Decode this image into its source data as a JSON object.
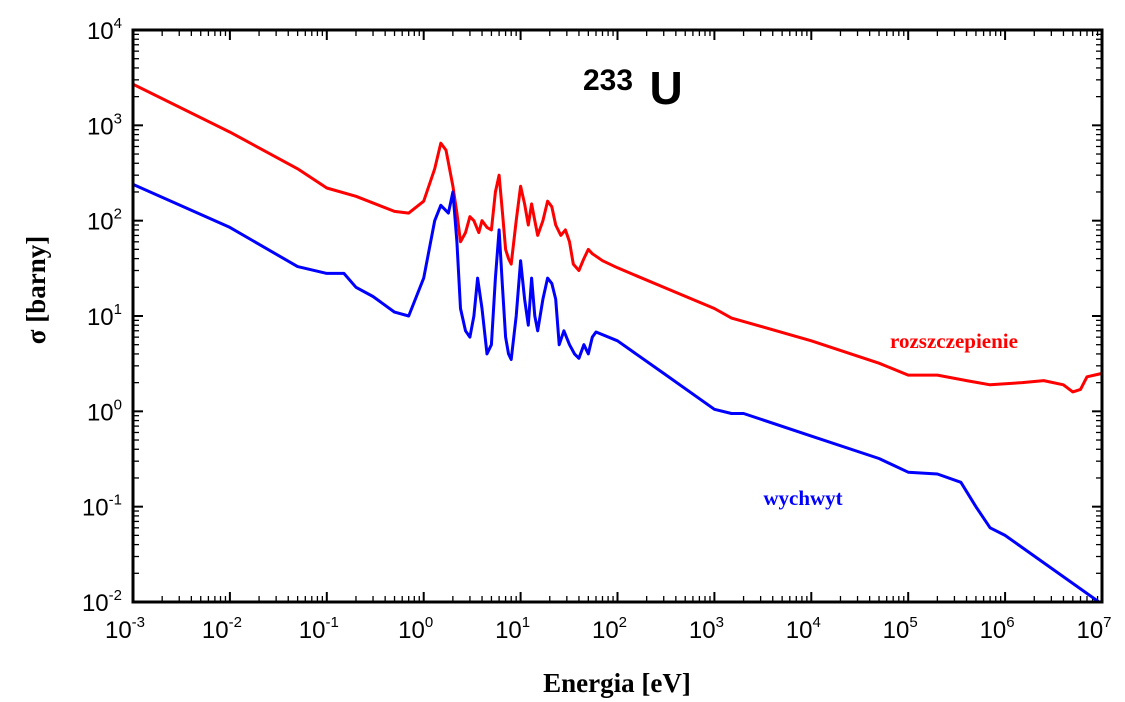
{
  "chart_data": {
    "type": "line",
    "title": "",
    "annotation": {
      "mass_number": "233",
      "element": "U"
    },
    "xlabel": "Energia [eV]",
    "ylabel": "σ [barny]",
    "x_scale": "log",
    "y_scale": "log",
    "xlim": [
      0.001,
      10000000
    ],
    "ylim": [
      0.01,
      10000
    ],
    "x_ticks": [
      {
        "base": "10",
        "exp": "-3",
        "value": 0.001
      },
      {
        "base": "10",
        "exp": "-2",
        "value": 0.01
      },
      {
        "base": "10",
        "exp": "-1",
        "value": 0.1
      },
      {
        "base": "10",
        "exp": "0",
        "value": 1
      },
      {
        "base": "10",
        "exp": "1",
        "value": 10
      },
      {
        "base": "10",
        "exp": "2",
        "value": 100
      },
      {
        "base": "10",
        "exp": "3",
        "value": 1000
      },
      {
        "base": "10",
        "exp": "4",
        "value": 10000
      },
      {
        "base": "10",
        "exp": "5",
        "value": 100000
      },
      {
        "base": "10",
        "exp": "6",
        "value": 1000000
      },
      {
        "base": "10",
        "exp": "7",
        "value": 10000000
      }
    ],
    "y_ticks": [
      {
        "base": "10",
        "exp": "-2",
        "value": 0.01
      },
      {
        "base": "10",
        "exp": "-1",
        "value": 0.1
      },
      {
        "base": "10",
        "exp": "0",
        "value": 1
      },
      {
        "base": "10",
        "exp": "1",
        "value": 10
      },
      {
        "base": "10",
        "exp": "2",
        "value": 100
      },
      {
        "base": "10",
        "exp": "3",
        "value": 1000
      },
      {
        "base": "10",
        "exp": "4",
        "value": 10000
      }
    ],
    "grid": false,
    "series": [
      {
        "name": "rozszczepienie",
        "color": "#ff0000",
        "points": [
          [
            0.001,
            2700
          ],
          [
            0.01,
            850
          ],
          [
            0.05,
            350
          ],
          [
            0.1,
            220
          ],
          [
            0.2,
            180
          ],
          [
            0.5,
            125
          ],
          [
            0.7,
            120
          ],
          [
            1.0,
            160
          ],
          [
            1.3,
            350
          ],
          [
            1.5,
            650
          ],
          [
            1.7,
            550
          ],
          [
            2.0,
            230
          ],
          [
            2.2,
            120
          ],
          [
            2.4,
            60
          ],
          [
            2.7,
            75
          ],
          [
            3.0,
            110
          ],
          [
            3.3,
            100
          ],
          [
            3.7,
            75
          ],
          [
            4.0,
            100
          ],
          [
            4.5,
            85
          ],
          [
            5.0,
            80
          ],
          [
            5.5,
            200
          ],
          [
            6.0,
            300
          ],
          [
            6.5,
            120
          ],
          [
            7.0,
            50
          ],
          [
            7.5,
            40
          ],
          [
            8.0,
            35
          ],
          [
            9.0,
            100
          ],
          [
            10.0,
            230
          ],
          [
            11.0,
            150
          ],
          [
            12.0,
            90
          ],
          [
            13.0,
            150
          ],
          [
            14.0,
            100
          ],
          [
            15.0,
            70
          ],
          [
            17.0,
            100
          ],
          [
            19.0,
            160
          ],
          [
            21.0,
            140
          ],
          [
            23.0,
            90
          ],
          [
            26.0,
            70
          ],
          [
            29.0,
            80
          ],
          [
            32.0,
            60
          ],
          [
            35.0,
            35
          ],
          [
            40.0,
            30
          ],
          [
            45.0,
            40
          ],
          [
            50.0,
            50
          ],
          [
            55.0,
            45
          ],
          [
            70.0,
            38
          ],
          [
            100.0,
            32
          ],
          [
            300.0,
            20
          ],
          [
            1000.0,
            12
          ],
          [
            1500.0,
            9.5
          ],
          [
            3000.0,
            7.8
          ],
          [
            10000.0,
            5.5
          ],
          [
            50000.0,
            3.2
          ],
          [
            100000.0,
            2.4
          ],
          [
            200000.0,
            2.4
          ],
          [
            400000.0,
            2.1
          ],
          [
            700000.0,
            1.9
          ],
          [
            1500000.0,
            2.0
          ],
          [
            2500000.0,
            2.1
          ],
          [
            4000000.0,
            1.9
          ],
          [
            5000000.0,
            1.6
          ],
          [
            6000000.0,
            1.7
          ],
          [
            7000000.0,
            2.3
          ],
          [
            10000000.0,
            2.5
          ]
        ]
      },
      {
        "name": "wychwyt",
        "color": "#0000ff",
        "points": [
          [
            0.001,
            240
          ],
          [
            0.01,
            85
          ],
          [
            0.05,
            33
          ],
          [
            0.1,
            28
          ],
          [
            0.15,
            28
          ],
          [
            0.2,
            20
          ],
          [
            0.3,
            16
          ],
          [
            0.5,
            11
          ],
          [
            0.7,
            10
          ],
          [
            1.0,
            25
          ],
          [
            1.3,
            100
          ],
          [
            1.5,
            145
          ],
          [
            1.8,
            120
          ],
          [
            2.0,
            200
          ],
          [
            2.2,
            60
          ],
          [
            2.4,
            12
          ],
          [
            2.7,
            7
          ],
          [
            3.0,
            6
          ],
          [
            3.3,
            10
          ],
          [
            3.6,
            25
          ],
          [
            4.0,
            12
          ],
          [
            4.5,
            4
          ],
          [
            5.0,
            5
          ],
          [
            5.5,
            25
          ],
          [
            6.0,
            80
          ],
          [
            6.5,
            20
          ],
          [
            7.0,
            6
          ],
          [
            7.5,
            4
          ],
          [
            8.0,
            3.5
          ],
          [
            9.0,
            10
          ],
          [
            10.0,
            38
          ],
          [
            11.0,
            15
          ],
          [
            12.0,
            8
          ],
          [
            13.0,
            25
          ],
          [
            14.0,
            10
          ],
          [
            15.0,
            7
          ],
          [
            17.0,
            15
          ],
          [
            19.0,
            25
          ],
          [
            21.0,
            22
          ],
          [
            23.0,
            15
          ],
          [
            25.0,
            5
          ],
          [
            28.0,
            7
          ],
          [
            32.0,
            5
          ],
          [
            36.0,
            4
          ],
          [
            40.0,
            3.6
          ],
          [
            45.0,
            5
          ],
          [
            50.0,
            4
          ],
          [
            55.0,
            6
          ],
          [
            60.0,
            6.8
          ],
          [
            100.0,
            5.5
          ],
          [
            300.0,
            2.5
          ],
          [
            1000.0,
            1.05
          ],
          [
            1500.0,
            0.95
          ],
          [
            2000.0,
            0.95
          ],
          [
            10000.0,
            0.55
          ],
          [
            50000.0,
            0.32
          ],
          [
            100000.0,
            0.23
          ],
          [
            200000.0,
            0.22
          ],
          [
            350000.0,
            0.18
          ],
          [
            500000.0,
            0.1
          ],
          [
            700000.0,
            0.06
          ],
          [
            1000000.0,
            0.05
          ],
          [
            10000000.0,
            0.0095
          ]
        ]
      }
    ]
  }
}
